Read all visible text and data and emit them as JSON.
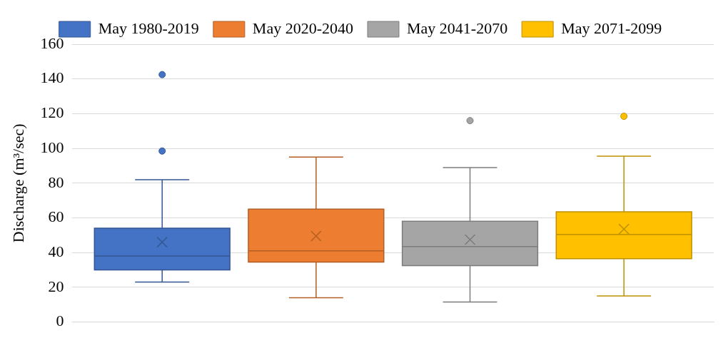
{
  "chart_data": {
    "type": "box",
    "ylabel": "Discharge (m³/sec)",
    "categories": [
      null
    ],
    "series": [
      {
        "name": "May 1980-2019",
        "color": "#4472c4",
        "boxes": [
          {
            "low": 23,
            "q1": 30,
            "median": 38,
            "q3": 54,
            "high": 82,
            "mean": 46,
            "outliers": [
              142.5,
              98.5
            ]
          }
        ]
      },
      {
        "name": "May 2020-2040",
        "color": "#ed7d31",
        "boxes": [
          {
            "low": 14,
            "q1": 34.5,
            "median": 41,
            "q3": 65,
            "high": 95,
            "mean": 49.5
          }
        ]
      },
      {
        "name": "May 2041-2070",
        "color": "#a5a5a5",
        "boxes": [
          {
            "low": 11.5,
            "q1": 32.5,
            "median": 43.5,
            "q3": 58,
            "high": 89,
            "mean": 47.5,
            "outliers": [
              116
            ]
          }
        ]
      },
      {
        "name": "May 2071-2099",
        "color": "#ffc000",
        "boxes": [
          {
            "low": 15,
            "q1": 36.5,
            "median": 50.5,
            "q3": 63.5,
            "high": 95.5,
            "mean": 53.5,
            "outliers": [
              118.5
            ]
          }
        ]
      }
    ],
    "ylim": [
      0,
      160
    ],
    "yticks": [
      0,
      20,
      40,
      60,
      80,
      100,
      120,
      140,
      160
    ],
    "grid": "y",
    "legend": "top",
    "marker": "cross"
  }
}
